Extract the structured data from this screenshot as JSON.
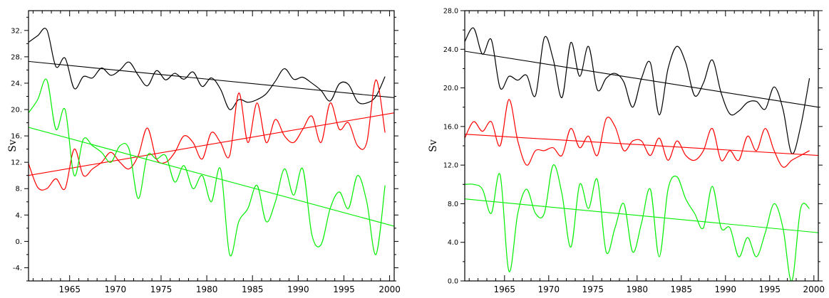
{
  "chart_data": [
    {
      "type": "line",
      "title": "",
      "xlabel": "",
      "ylabel": "Sv",
      "xlim": [
        1960.5,
        2000.5
      ],
      "ylim": [
        -6,
        35
      ],
      "grid": false,
      "x_ticks": [
        1965,
        1970,
        1975,
        1980,
        1985,
        1990,
        1995,
        2000
      ],
      "x_tick_labels": [
        "1965",
        "1970",
        "1975",
        "1980",
        "1985",
        "1990",
        "1995",
        "2000"
      ],
      "y_ticks": [
        -4,
        0,
        4,
        8,
        12,
        16,
        20,
        24,
        28,
        32
      ],
      "y_tick_labels": [
        "-4.",
        "0.",
        "4.",
        "8.",
        "12.",
        "16.",
        "20.",
        "24.",
        "28.",
        "32."
      ],
      "series": [
        {
          "color": "#000000",
          "x": [
            1960.5,
            1961.5,
            1962.5,
            1963.5,
            1964.5,
            1965.5,
            1966.5,
            1967.5,
            1968.5,
            1969.5,
            1970.5,
            1971.5,
            1972.5,
            1973.5,
            1974.5,
            1975.5,
            1976.5,
            1977.5,
            1978.5,
            1979.5,
            1980.5,
            1981.5,
            1982.5,
            1983.5,
            1984.5,
            1985.5,
            1986.5,
            1987.5,
            1988.5,
            1989.5,
            1990.5,
            1991.5,
            1992.5,
            1993.5,
            1994.5,
            1995.5,
            1996.5,
            1997.5,
            1998.5,
            1999.5
          ],
          "values": [
            30.2,
            31.2,
            32.1,
            26.5,
            27.8,
            23.2,
            25.0,
            24.8,
            26.3,
            25.2,
            26.0,
            27.2,
            25.2,
            23.6,
            25.9,
            24.5,
            25.5,
            24.6,
            25.7,
            23.5,
            24.8,
            23.1,
            20.0,
            21.5,
            21.1,
            21.5,
            22.4,
            24.3,
            26.2,
            24.6,
            24.9,
            24.0,
            22.9,
            21.3,
            23.9,
            23.8,
            21.2,
            21.0,
            22.0,
            25.0
          ],
          "trend": [
            27.3,
            21.8
          ]
        },
        {
          "color": "#ff0000",
          "x": [
            1960.5,
            1961.5,
            1962.5,
            1963.5,
            1964.5,
            1965.5,
            1966.5,
            1967.5,
            1968.5,
            1969.5,
            1970.5,
            1971.5,
            1972.5,
            1973.5,
            1974.5,
            1975.5,
            1976.5,
            1977.5,
            1978.5,
            1979.5,
            1980.5,
            1981.5,
            1982.5,
            1983.5,
            1984.5,
            1985.5,
            1986.5,
            1987.5,
            1988.5,
            1989.5,
            1990.5,
            1991.5,
            1992.5,
            1993.5,
            1994.5,
            1995.5,
            1996.5,
            1997.5,
            1998.5,
            1999.5
          ],
          "values": [
            11.8,
            8.2,
            8.0,
            9.5,
            8.0,
            14.0,
            10.0,
            11.0,
            12.0,
            13.5,
            12.0,
            11.0,
            13.0,
            17.2,
            12.5,
            12.0,
            13.5,
            16.0,
            15.0,
            12.5,
            16.5,
            15.0,
            13.0,
            22.5,
            15.0,
            21.0,
            15.0,
            18.5,
            16.0,
            15.0,
            17.0,
            19.0,
            15.0,
            21.0,
            17.0,
            18.0,
            14.5,
            15.0,
            24.5,
            16.5
          ],
          "trend": [
            10.0,
            19.5
          ]
        },
        {
          "color": "#00ee00",
          "x": [
            1960.5,
            1961.5,
            1962.5,
            1963.5,
            1964.5,
            1965.5,
            1966.5,
            1967.5,
            1968.5,
            1969.5,
            1970.5,
            1971.5,
            1972.5,
            1973.5,
            1974.5,
            1975.5,
            1976.5,
            1977.5,
            1978.5,
            1979.5,
            1980.5,
            1981.5,
            1982.5,
            1983.5,
            1984.5,
            1985.5,
            1986.5,
            1987.5,
            1988.5,
            1989.5,
            1990.5,
            1991.5,
            1992.5,
            1993.5,
            1994.5,
            1995.5,
            1996.5,
            1997.5,
            1998.5,
            1999.5
          ],
          "values": [
            19.5,
            21.5,
            24.5,
            17.0,
            20.0,
            10.0,
            15.5,
            14.5,
            13.5,
            12.0,
            14.5,
            14.0,
            6.5,
            13.0,
            12.5,
            13.0,
            9.0,
            11.5,
            8.0,
            10.0,
            6.0,
            11.0,
            -2.0,
            3.0,
            5.0,
            8.5,
            3.0,
            6.0,
            11.0,
            7.0,
            11.0,
            1.0,
            -0.5,
            5.0,
            7.5,
            5.0,
            10.0,
            6.0,
            -2.0,
            8.5
          ],
          "trend": [
            17.3,
            2.3
          ]
        }
      ]
    },
    {
      "type": "line",
      "title": "",
      "xlabel": "",
      "ylabel": "Sv",
      "xlim": [
        1960.5,
        2000.5
      ],
      "ylim": [
        0,
        28
      ],
      "grid": false,
      "x_ticks": [
        1965,
        1970,
        1975,
        1980,
        1985,
        1990,
        1995,
        2000
      ],
      "x_tick_labels": [
        "1965",
        "1970",
        "1975",
        "1980",
        "1985",
        "1990",
        "1995",
        "2000"
      ],
      "y_ticks": [
        0,
        4,
        8,
        12,
        16,
        20,
        24,
        28
      ],
      "y_tick_labels": [
        "0.0",
        "4.0",
        "8.0",
        "12.0",
        "16.0",
        "20.0",
        "24.0",
        "28.0"
      ],
      "series": [
        {
          "color": "#000000",
          "x": [
            1960.5,
            1961.5,
            1962.5,
            1963.5,
            1964.5,
            1965.5,
            1966.5,
            1967.5,
            1968.5,
            1969.5,
            1970.5,
            1971.5,
            1972.5,
            1973.5,
            1974.5,
            1975.5,
            1976.5,
            1977.5,
            1978.5,
            1979.5,
            1980.5,
            1981.5,
            1982.5,
            1983.5,
            1984.5,
            1985.5,
            1986.5,
            1987.5,
            1988.5,
            1989.5,
            1990.5,
            1991.5,
            1992.5,
            1993.5,
            1994.5,
            1995.5,
            1996.5,
            1997.5,
            1998.5,
            1999.5
          ],
          "values": [
            24.8,
            26.2,
            23.5,
            25.0,
            20.0,
            21.2,
            20.8,
            21.3,
            19.2,
            25.2,
            23.0,
            19.0,
            24.7,
            21.2,
            24.3,
            19.8,
            21.0,
            21.5,
            20.6,
            18.0,
            21.0,
            22.6,
            17.2,
            22.0,
            24.3,
            22.6,
            19.2,
            20.5,
            22.9,
            19.5,
            17.3,
            17.6,
            18.5,
            18.6,
            17.8,
            20.1,
            17.8,
            13.2,
            16.0,
            21.0
          ],
          "trend": [
            23.8,
            18.0
          ]
        },
        {
          "color": "#ff0000",
          "x": [
            1960.5,
            1961.5,
            1962.5,
            1963.5,
            1964.5,
            1965.5,
            1966.5,
            1967.5,
            1968.5,
            1969.5,
            1970.5,
            1971.5,
            1972.5,
            1973.5,
            1974.5,
            1975.5,
            1976.5,
            1977.5,
            1978.5,
            1979.5,
            1980.5,
            1981.5,
            1982.5,
            1983.5,
            1984.5,
            1985.5,
            1986.5,
            1987.5,
            1988.5,
            1989.5,
            1990.5,
            1991.5,
            1992.5,
            1993.5,
            1994.5,
            1995.5,
            1996.5,
            1997.5,
            1998.5,
            1999.5
          ],
          "values": [
            14.8,
            16.5,
            15.5,
            16.5,
            14.0,
            18.8,
            14.5,
            12.0,
            13.5,
            13.5,
            13.8,
            13.0,
            15.8,
            13.8,
            15.0,
            13.0,
            16.8,
            16.0,
            13.5,
            14.5,
            14.5,
            13.0,
            14.8,
            12.5,
            14.5,
            13.0,
            12.5,
            13.5,
            15.8,
            12.5,
            13.5,
            12.5,
            15.0,
            13.5,
            15.8,
            13.5,
            11.8,
            12.5,
            13.0,
            13.5
          ],
          "trend": [
            15.2,
            13.0
          ]
        },
        {
          "color": "#00ee00",
          "x": [
            1960.5,
            1961.5,
            1962.5,
            1963.5,
            1964.5,
            1965.5,
            1966.5,
            1967.5,
            1968.5,
            1969.5,
            1970.5,
            1971.5,
            1972.5,
            1973.5,
            1974.5,
            1975.5,
            1976.5,
            1977.5,
            1978.5,
            1979.5,
            1980.5,
            1981.5,
            1982.5,
            1983.5,
            1984.5,
            1985.5,
            1986.5,
            1987.5,
            1988.5,
            1989.5,
            1990.5,
            1991.5,
            1992.5,
            1993.5,
            1994.5,
            1995.5,
            1996.5,
            1997.5,
            1998.5,
            1999.5
          ],
          "values": [
            10.0,
            10.0,
            9.5,
            7.0,
            11.0,
            1.0,
            7.0,
            9.5,
            7.0,
            7.0,
            12.0,
            9.0,
            3.5,
            10.0,
            7.5,
            10.5,
            3.0,
            5.5,
            8.0,
            3.0,
            6.0,
            9.5,
            2.5,
            9.5,
            10.8,
            8.5,
            7.0,
            5.5,
            9.8,
            5.5,
            5.5,
            2.5,
            4.5,
            2.5,
            5.0,
            8.0,
            5.5,
            0.0,
            7.5,
            7.5
          ],
          "trend": [
            8.5,
            5.0
          ]
        }
      ]
    }
  ]
}
